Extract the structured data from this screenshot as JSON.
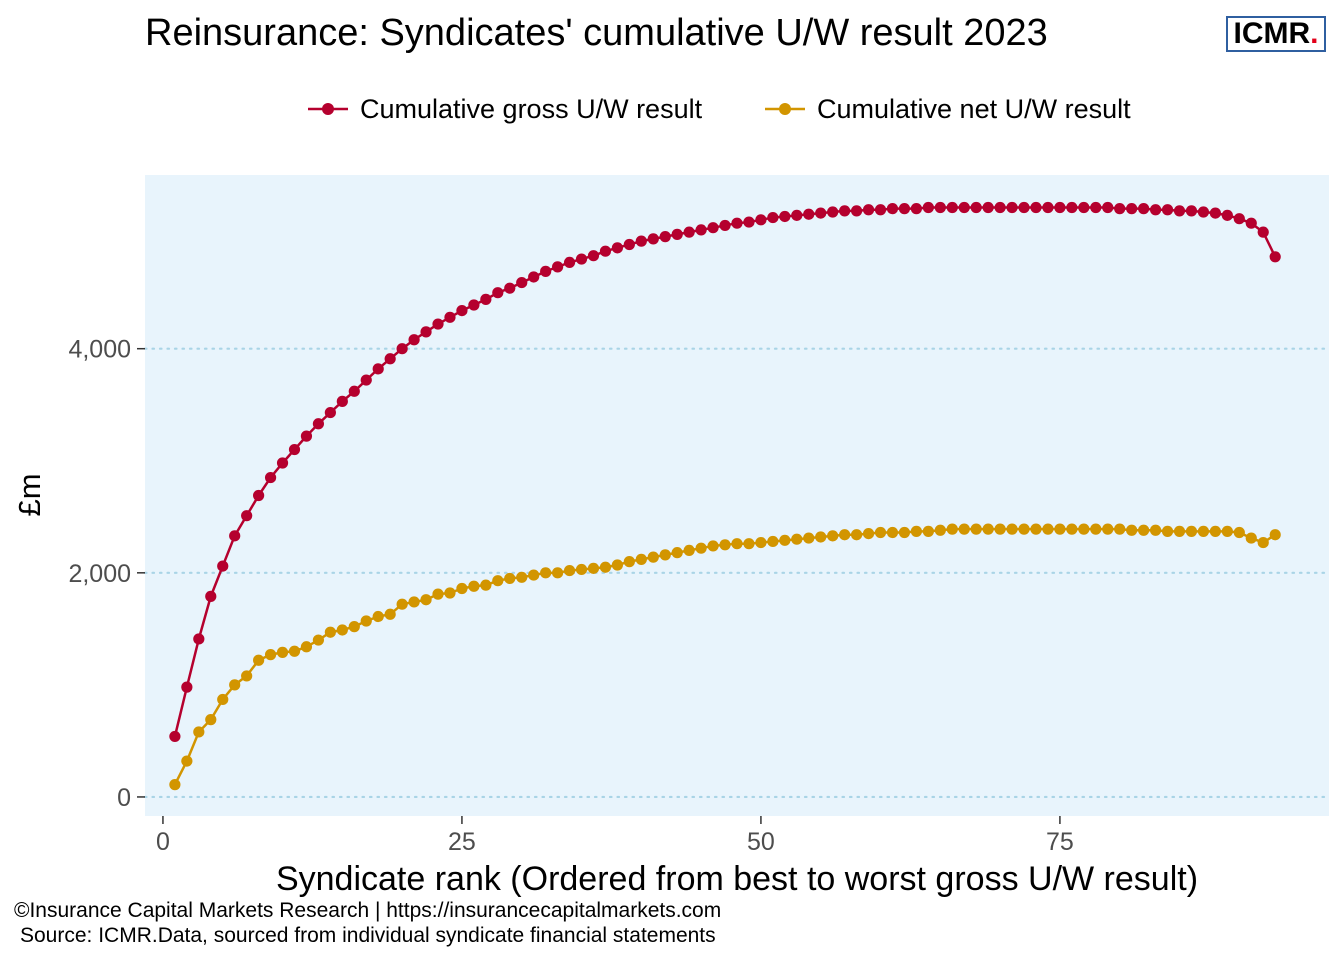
{
  "title": "Reinsurance: Syndicates' cumulative  U/W result 2023",
  "logo": {
    "text": "ICMR",
    "dot": "."
  },
  "footer": {
    "copyright": "©Insurance Capital Markets Research | https://insurancecapitalmarkets.com",
    "source": "Source: ICMR.Data, sourced from individual syndicate financial statements"
  },
  "colors": {
    "gross": "#b5002e",
    "net": "#d29500",
    "panel": "#e8f4fc",
    "grid": "#a9d4e6",
    "logo_border": "#2f5fa0",
    "logo_dot": "#e2001a"
  },
  "chart_data": {
    "type": "line",
    "title": "Reinsurance: Syndicates' cumulative  U/W result 2023",
    "xlabel": "Syndicate rank (Ordered from best to worst gross U/W result)",
    "ylabel": "£m",
    "xlim": [
      -1.5,
      97.5
    ],
    "ylim": [
      -170,
      5550
    ],
    "x_ticks": [
      0,
      25,
      50,
      75
    ],
    "x_tick_labels": [
      "0",
      "25",
      "50",
      "75"
    ],
    "y_ticks": [
      0,
      2000,
      4000
    ],
    "y_tick_labels": [
      "0",
      "2,000",
      "4,000"
    ],
    "grid": "horizontal dotted",
    "legend_position": "top",
    "x": [
      1,
      2,
      3,
      4,
      5,
      6,
      7,
      8,
      9,
      10,
      11,
      12,
      13,
      14,
      15,
      16,
      17,
      18,
      19,
      20,
      21,
      22,
      23,
      24,
      25,
      26,
      27,
      28,
      29,
      30,
      31,
      32,
      33,
      34,
      35,
      36,
      37,
      38,
      39,
      40,
      41,
      42,
      43,
      44,
      45,
      46,
      47,
      48,
      49,
      50,
      51,
      52,
      53,
      54,
      55,
      56,
      57,
      58,
      59,
      60,
      61,
      62,
      63,
      64,
      65,
      66,
      67,
      68,
      69,
      70,
      71,
      72,
      73,
      74,
      75,
      76,
      77,
      78,
      79,
      80,
      81,
      82,
      83,
      84,
      85,
      86,
      87,
      88,
      89,
      90,
      91,
      92,
      93
    ],
    "series": [
      {
        "name": "Cumulative gross U/W result",
        "color": "#b5002e",
        "values": [
          540,
          980,
          1410,
          1790,
          2060,
          2330,
          2510,
          2690,
          2850,
          2980,
          3100,
          3220,
          3330,
          3430,
          3530,
          3620,
          3720,
          3820,
          3910,
          4000,
          4080,
          4150,
          4220,
          4280,
          4340,
          4390,
          4440,
          4500,
          4540,
          4590,
          4640,
          4690,
          4730,
          4770,
          4800,
          4830,
          4870,
          4900,
          4930,
          4960,
          4980,
          5000,
          5020,
          5040,
          5060,
          5080,
          5100,
          5120,
          5130,
          5150,
          5170,
          5180,
          5190,
          5200,
          5210,
          5220,
          5230,
          5230,
          5240,
          5240,
          5250,
          5250,
          5250,
          5260,
          5260,
          5260,
          5260,
          5260,
          5260,
          5260,
          5260,
          5260,
          5260,
          5260,
          5260,
          5260,
          5260,
          5260,
          5260,
          5250,
          5250,
          5250,
          5240,
          5240,
          5230,
          5230,
          5220,
          5210,
          5190,
          5160,
          5120,
          5040,
          4820
        ]
      },
      {
        "name": "Cumulative net U/W result",
        "color": "#d29500",
        "values": [
          110,
          320,
          580,
          690,
          870,
          1000,
          1080,
          1220,
          1270,
          1290,
          1300,
          1340,
          1400,
          1470,
          1490,
          1520,
          1570,
          1610,
          1630,
          1720,
          1740,
          1760,
          1810,
          1820,
          1860,
          1880,
          1890,
          1930,
          1950,
          1960,
          1980,
          2000,
          2000,
          2020,
          2030,
          2040,
          2050,
          2070,
          2100,
          2120,
          2140,
          2160,
          2180,
          2200,
          2220,
          2240,
          2250,
          2260,
          2260,
          2270,
          2280,
          2290,
          2300,
          2310,
          2320,
          2330,
          2340,
          2340,
          2350,
          2360,
          2360,
          2360,
          2370,
          2370,
          2380,
          2390,
          2390,
          2390,
          2390,
          2390,
          2390,
          2390,
          2390,
          2390,
          2390,
          2390,
          2390,
          2390,
          2390,
          2390,
          2380,
          2380,
          2380,
          2370,
          2370,
          2370,
          2370,
          2370,
          2370,
          2360,
          2310,
          2270,
          2340
        ]
      }
    ]
  }
}
